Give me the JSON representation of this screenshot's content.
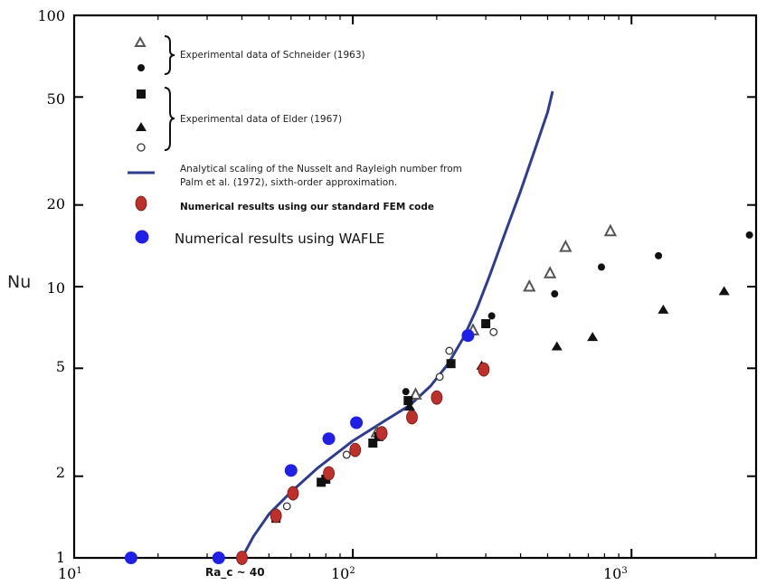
{
  "chart_data": {
    "type": "scatter",
    "xscale": "log",
    "yscale": "log",
    "xlim": [
      10,
      2800
    ],
    "ylim": [
      1,
      100
    ],
    "xlabel": "",
    "ylabel": "Nu",
    "x_ticks": [
      {
        "value": 10,
        "base": "10",
        "exp": "1"
      },
      {
        "value": 100,
        "base": "10",
        "exp": "2"
      },
      {
        "value": 1000,
        "base": "10",
        "exp": "3"
      }
    ],
    "y_ticks": [
      {
        "value": 1,
        "label": "1"
      },
      {
        "value": 2,
        "label": "2"
      },
      {
        "value": 5,
        "label": "5"
      },
      {
        "value": 10,
        "label": "10"
      },
      {
        "value": 20,
        "label": "20"
      },
      {
        "value": 50,
        "label": "50"
      },
      {
        "value": 100,
        "label": "100"
      }
    ],
    "annotation": "Ra_c ~ 40",
    "legend": {
      "schneider_label": "Experimental data of Schneider (1963)",
      "elder_label": "Experimental data of Elder (1967)",
      "line_label_1": "Analytical scaling of the Nusselt and Rayleigh number from",
      "line_label_2": "Palm et al. (1972), sixth-order approximation.",
      "fem_label": "Numerical results using our standard FEM code",
      "wafle_label": "Numerical results using WAFLE"
    },
    "colors": {
      "analytical": "#2e3d8f",
      "fem": "#c0302a",
      "wafle": "#1f1fe8"
    },
    "series": [
      {
        "id": "schneider-triangle",
        "marker": "open-triangle",
        "points": [
          [
            122,
            2.9
          ],
          [
            168,
            4.0
          ],
          [
            270,
            6.9
          ],
          [
            430,
            10.0
          ],
          [
            510,
            11.2
          ],
          [
            580,
            14.0
          ],
          [
            840,
            16.0
          ]
        ]
      },
      {
        "id": "schneider-dot",
        "marker": "filled-dot",
        "points": [
          [
            155,
            4.1
          ],
          [
            315,
            7.8
          ],
          [
            530,
            9.4
          ],
          [
            780,
            11.8
          ],
          [
            1250,
            13.0
          ],
          [
            2650,
            15.5
          ]
        ]
      },
      {
        "id": "elder-square",
        "marker": "filled-square",
        "points": [
          [
            53,
            1.4
          ],
          [
            77,
            1.9
          ],
          [
            80,
            1.95
          ],
          [
            118,
            2.65
          ],
          [
            124,
            2.8
          ],
          [
            158,
            3.8
          ],
          [
            225,
            5.2
          ],
          [
            300,
            7.3
          ]
        ]
      },
      {
        "id": "elder-triangle",
        "marker": "filled-triangle",
        "points": [
          [
            160,
            3.6
          ],
          [
            290,
            5.1
          ],
          [
            540,
            6.0
          ],
          [
            725,
            6.5
          ],
          [
            1300,
            8.2
          ],
          [
            2150,
            9.6
          ]
        ]
      },
      {
        "id": "elder-circle",
        "marker": "open-circle",
        "points": [
          [
            58,
            1.55
          ],
          [
            95,
            2.4
          ],
          [
            205,
            4.65
          ],
          [
            222,
            5.8
          ],
          [
            320,
            6.8
          ]
        ]
      },
      {
        "id": "fem",
        "marker": "red-ellipse",
        "points": [
          [
            40,
            1.0
          ],
          [
            53,
            1.43
          ],
          [
            61,
            1.73
          ],
          [
            82,
            2.05
          ],
          [
            102,
            2.5
          ],
          [
            127,
            2.88
          ],
          [
            163,
            3.3
          ],
          [
            200,
            3.9
          ],
          [
            295,
            4.95
          ]
        ]
      },
      {
        "id": "wafle",
        "marker": "blue-dot",
        "points": [
          [
            16,
            1.0
          ],
          [
            33,
            1.0
          ],
          [
            60,
            2.1
          ],
          [
            82,
            2.75
          ],
          [
            103,
            3.15
          ],
          [
            259,
            6.6
          ]
        ]
      }
    ],
    "line": {
      "id": "analytical",
      "points": [
        [
          40,
          1.0
        ],
        [
          44,
          1.2
        ],
        [
          50,
          1.45
        ],
        [
          60,
          1.75
        ],
        [
          75,
          2.15
        ],
        [
          100,
          2.7
        ],
        [
          130,
          3.2
        ],
        [
          160,
          3.65
        ],
        [
          190,
          4.3
        ],
        [
          220,
          5.2
        ],
        [
          250,
          6.5
        ],
        [
          280,
          8.4
        ],
        [
          310,
          11.0
        ],
        [
          350,
          15.5
        ],
        [
          400,
          22.5
        ],
        [
          450,
          32.0
        ],
        [
          500,
          44.0
        ],
        [
          520,
          52.0
        ]
      ]
    }
  }
}
